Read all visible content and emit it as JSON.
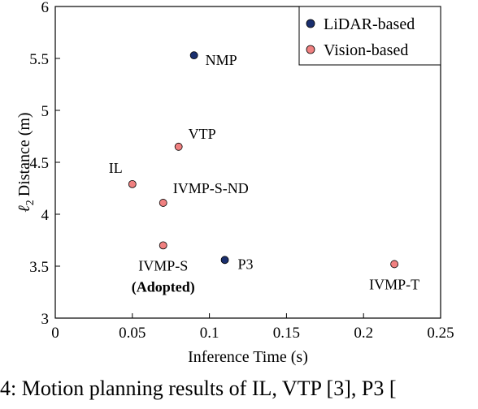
{
  "chart_data": {
    "type": "scatter",
    "xlabel": "Inference Time (s)",
    "ylabel_main": "Distance (m)",
    "ylabel_symbol": "ℓ",
    "ylabel_sub": "2",
    "xlim": [
      0,
      0.25
    ],
    "ylim": [
      3,
      6
    ],
    "xticks": [
      "0",
      "0.05",
      "0.1",
      "0.15",
      "0.2",
      "0.25"
    ],
    "yticks": [
      "3",
      "3.5",
      "4",
      "4.5",
      "5",
      "5.5",
      "6"
    ],
    "grid": false,
    "legend_position": "top-right",
    "series": [
      {
        "name": "LiDAR-based",
        "color": "#1a2f6e",
        "points": [
          {
            "label": "NMP",
            "x": 0.09,
            "y": 5.53
          },
          {
            "label": "P3",
            "x": 0.11,
            "y": 3.56
          }
        ]
      },
      {
        "name": "Vision-based",
        "color": "#f08080",
        "points": [
          {
            "label": "VTP",
            "x": 0.08,
            "y": 4.65
          },
          {
            "label": "IL",
            "x": 0.05,
            "y": 4.29
          },
          {
            "label": "IVMP-S-ND",
            "x": 0.07,
            "y": 4.11
          },
          {
            "label": "IVMP-S",
            "sublabel": "(Adopted)",
            "x": 0.07,
            "y": 3.7
          },
          {
            "label": "IVMP-T",
            "x": 0.22,
            "y": 3.52
          }
        ]
      }
    ]
  },
  "caption": "4: Motion planning results of IL, VTP [3], P3 ["
}
